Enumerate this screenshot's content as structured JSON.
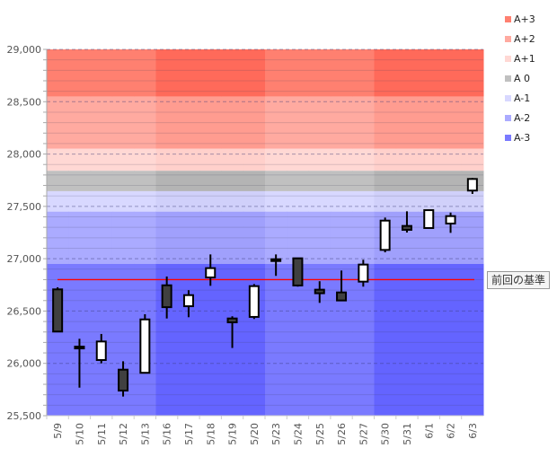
{
  "chart_data": {
    "type": "candlestick",
    "title": "",
    "xlabel": "",
    "ylabel": "",
    "ylim": [
      25500,
      29000
    ],
    "y_ticks": [
      "25,500",
      "26,000",
      "26,500",
      "27,000",
      "27,500",
      "28,000",
      "28,500",
      "29,000"
    ],
    "y_tick_values": [
      25500,
      26000,
      26500,
      27000,
      27500,
      28000,
      28500,
      29000
    ],
    "grid": "major dashed every 500, minor solid every 100",
    "categories": [
      "5/9",
      "5/10",
      "5/11",
      "5/12",
      "5/13",
      "5/16",
      "5/17",
      "5/18",
      "5/19",
      "5/20",
      "5/23",
      "5/24",
      "5/25",
      "5/26",
      "5/27",
      "5/30",
      "5/31",
      "6/1",
      "6/2",
      "6/3"
    ],
    "candles": [
      {
        "open": 26707,
        "high": 26727,
        "low": 26304,
        "close": 26304
      },
      {
        "open": 26160,
        "high": 26235,
        "low": 25768,
        "close": 26150
      },
      {
        "open": 26032,
        "high": 26281,
        "low": 26000,
        "close": 26209
      },
      {
        "open": 25940,
        "high": 26020,
        "low": 25683,
        "close": 25740
      },
      {
        "open": 25910,
        "high": 26469,
        "low": 25910,
        "close": 26420
      },
      {
        "open": 26746,
        "high": 26830,
        "low": 26429,
        "close": 26537
      },
      {
        "open": 26546,
        "high": 26699,
        "low": 26441,
        "close": 26652
      },
      {
        "open": 26821,
        "high": 27041,
        "low": 26741,
        "close": 26910
      },
      {
        "open": 26429,
        "high": 26450,
        "low": 26147,
        "close": 26392
      },
      {
        "open": 26444,
        "high": 26758,
        "low": 26424,
        "close": 26738
      },
      {
        "open": 26995,
        "high": 27041,
        "low": 26836,
        "close": 26990
      },
      {
        "open": 27004,
        "high": 27004,
        "low": 26733,
        "close": 26744
      },
      {
        "open": 26704,
        "high": 26785,
        "low": 26578,
        "close": 26670
      },
      {
        "open": 26678,
        "high": 26887,
        "low": 26601,
        "close": 26601
      },
      {
        "open": 26781,
        "high": 26990,
        "low": 26733,
        "close": 26944
      },
      {
        "open": 27084,
        "high": 27393,
        "low": 27061,
        "close": 27364
      },
      {
        "open": 27313,
        "high": 27453,
        "low": 27250,
        "close": 27276
      },
      {
        "open": 27293,
        "high": 27470,
        "low": 27293,
        "close": 27464
      },
      {
        "open": 27336,
        "high": 27441,
        "low": 27247,
        "close": 27407
      },
      {
        "open": 27651,
        "high": 27771,
        "low": 27619,
        "close": 27762
      }
    ],
    "bands": [
      {
        "name": "A+3",
        "from": 28550,
        "to": 29000,
        "color": "#ff8070",
        "dark": "#ff6a5a"
      },
      {
        "name": "A+2",
        "from": 28050,
        "to": 28550,
        "color": "#ffaaa0",
        "dark": "#ff9c90"
      },
      {
        "name": "A+1",
        "from": 27840,
        "to": 28050,
        "color": "#ffd8d4",
        "dark": "#ffd0cb"
      },
      {
        "name": "A 0",
        "from": 27645,
        "to": 27840,
        "color": "#c0c0c0",
        "dark": "#b4b4b4"
      },
      {
        "name": "A-1",
        "from": 27450,
        "to": 27645,
        "color": "#d8d8ff",
        "dark": "#d0d0fa"
      },
      {
        "name": "A-2",
        "from": 26950,
        "to": 27450,
        "color": "#ababff",
        "dark": "#a0a0fc"
      },
      {
        "name": "A-3",
        "from": 25500,
        "to": 26950,
        "color": "#7a7aff",
        "dark": "#6464ff"
      }
    ],
    "week_shading": [
      false,
      false,
      false,
      false,
      false,
      true,
      true,
      true,
      true,
      true,
      false,
      false,
      false,
      false,
      false,
      true,
      true,
      true,
      true,
      true
    ],
    "reference_line": {
      "value": 26800,
      "label": "前回の基準",
      "color": "#ff0000"
    },
    "legend_position": "top-right",
    "bullish_color": "#ffffff",
    "bearish_color": "#404040"
  }
}
